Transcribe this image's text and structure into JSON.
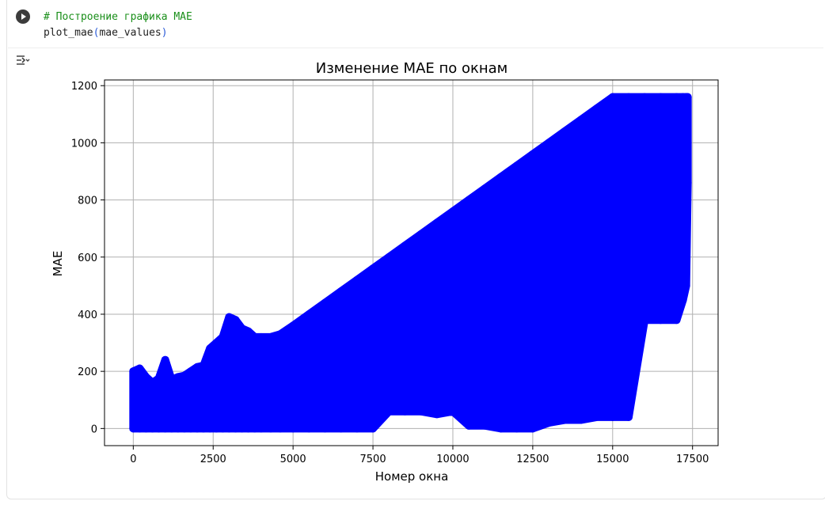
{
  "cell": {
    "code_line1": "# Построение графика MAE",
    "code_fn": "plot_mae",
    "code_open": "(",
    "code_arg": "mae_values",
    "code_close": ")"
  },
  "icons": {
    "run": "run-cell-icon",
    "output": "output-toggle-icon"
  },
  "colors": {
    "series": "#0000ff",
    "grid": "#b0b0b0",
    "comment": "#1a8f1a"
  },
  "chart_data": {
    "type": "line",
    "title": "Изменение MAE по окнам",
    "xlabel": "Номер окна",
    "ylabel": "MAE",
    "xlim": [
      -900,
      18300
    ],
    "ylim": [
      -60,
      1220
    ],
    "grid": true,
    "markers": true,
    "xticks": [
      0,
      2500,
      5000,
      7500,
      10000,
      12500,
      15000,
      17500
    ],
    "yticks": [
      0,
      200,
      400,
      600,
      800,
      1000,
      1200
    ],
    "series": [
      {
        "x": [
          0,
          200,
          400,
          600,
          800,
          1000,
          1200,
          1400,
          1600,
          1800,
          2000,
          2200,
          2400,
          2600,
          2800,
          3000,
          3200,
          3400,
          3600,
          3800,
          4000,
          4300,
          4600,
          5000,
          5500,
          6000,
          6500,
          7000,
          7500,
          8000,
          8500,
          9000,
          9500,
          10000,
          10500,
          11000,
          11500,
          12000,
          12500,
          13000,
          13500,
          14000,
          14500,
          15000,
          15500,
          16000,
          16500,
          17000,
          17200,
          17300,
          17350
        ],
        "y_max": [
          200,
          210,
          180,
          160,
          175,
          240,
          170,
          180,
          185,
          200,
          215,
          220,
          280,
          300,
          320,
          390,
          380,
          350,
          340,
          320,
          320,
          320,
          330,
          360,
          400,
          440,
          480,
          520,
          560,
          600,
          640,
          680,
          720,
          760,
          800,
          840,
          880,
          920,
          960,
          1000,
          1040,
          1080,
          1120,
          1160,
          1160,
          1160,
          1160,
          1160,
          1160,
          1160,
          1160
        ],
        "y_min": [
          0,
          0,
          0,
          0,
          0,
          0,
          0,
          0,
          0,
          0,
          0,
          0,
          0,
          0,
          0,
          0,
          0,
          0,
          0,
          0,
          0,
          0,
          0,
          0,
          0,
          0,
          0,
          0,
          0,
          60,
          60,
          60,
          50,
          60,
          10,
          10,
          0,
          0,
          0,
          20,
          30,
          30,
          40,
          40,
          40,
          380,
          380,
          380,
          450,
          500,
          860
        ]
      }
    ]
  }
}
